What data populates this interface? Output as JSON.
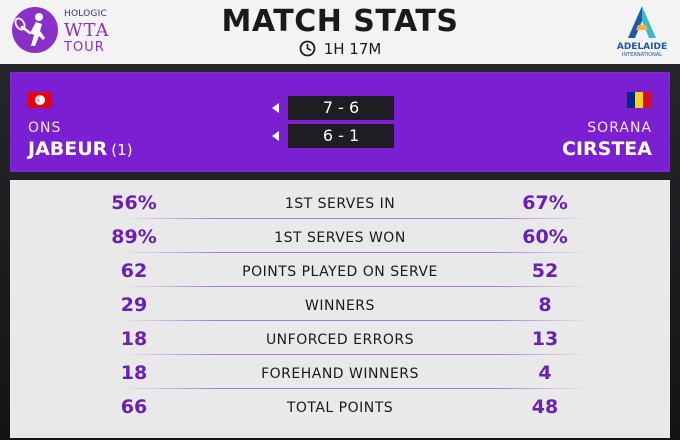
{
  "branding": {
    "sponsor": "HOLOGIC",
    "wta": "WTA",
    "tour": "TOUR",
    "event": "ADELAIDE",
    "event_sub": "INTERNATIONAL",
    "accent": "#7a1fd2"
  },
  "header": {
    "title": "MATCH STATS",
    "duration": "1H 17M",
    "clock_icon": "clock-icon"
  },
  "player1": {
    "first_name": "ONS",
    "last_name": "JABEUR",
    "seed": "(1)",
    "flag": "tunisia-flag",
    "flag_color": "#e70013"
  },
  "player2": {
    "first_name": "SORANA",
    "last_name": "CIRSTEA",
    "flag": "romania-flag",
    "flag_colors": [
      "#002b7f",
      "#fcd116",
      "#ce1126"
    ]
  },
  "sets": [
    {
      "score": "7 - 6",
      "winner_marker": "triangle-left-icon"
    },
    {
      "score": "6 - 1",
      "winner_marker": "triangle-left-icon"
    }
  ],
  "stats": [
    {
      "label": "1ST SERVES IN",
      "p1": "56%",
      "p2": "67%"
    },
    {
      "label": "1ST SERVES WON",
      "p1": "89%",
      "p2": "60%"
    },
    {
      "label": "POINTS PLAYED ON SERVE",
      "p1": "62",
      "p2": "52"
    },
    {
      "label": "WINNERS",
      "p1": "29",
      "p2": "8"
    },
    {
      "label": "UNFORCED ERRORS",
      "p1": "18",
      "p2": "13"
    },
    {
      "label": "FOREHAND WINNERS",
      "p1": "18",
      "p2": "4"
    },
    {
      "label": "TOTAL POINTS",
      "p1": "66",
      "p2": "48"
    }
  ]
}
